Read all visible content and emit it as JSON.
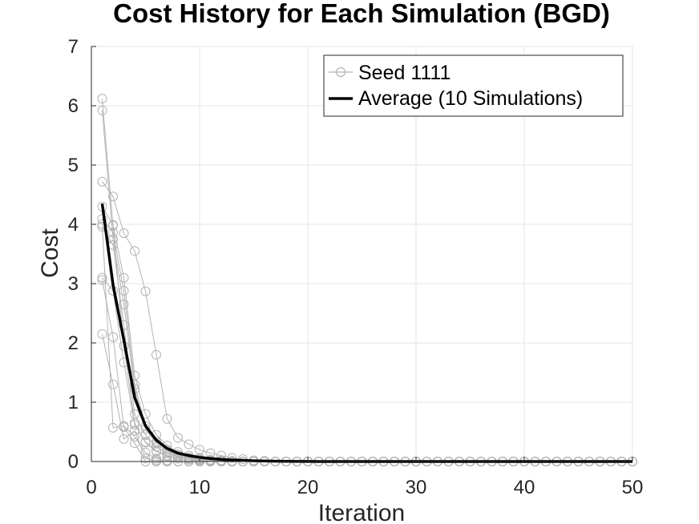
{
  "chart_data": {
    "type": "line",
    "title": "Cost History for Each Simulation (BGD)",
    "xlabel": "Iteration",
    "ylabel": "Cost",
    "xlim": [
      0,
      50
    ],
    "ylim": [
      0,
      7
    ],
    "xticks": [
      "0",
      "10",
      "20",
      "30",
      "40",
      "50"
    ],
    "yticks": [
      "0",
      "1",
      "2",
      "3",
      "4",
      "5",
      "6",
      "7"
    ],
    "grid": true,
    "legend_position": "top-right",
    "colors": {
      "simulations": "#b3b3b3",
      "average": "#000000",
      "grid": "#e6e6e6",
      "axes": "#262626"
    },
    "iterations_start": 1,
    "iterations_end": 50,
    "legend": {
      "seed": "Seed 1111",
      "average": "Average (10 Simulations)"
    },
    "series": [
      {
        "values": [
          6.12,
          3.98,
          1.95,
          0.65,
          0.32,
          0.17,
          0.09,
          0.05,
          0.03,
          0.02,
          0.01,
          0.0,
          0.0,
          0.0,
          0.0
        ]
      },
      {
        "values": [
          5.92,
          3.75,
          2.65,
          1.22,
          0.55,
          0.3,
          0.17,
          0.1,
          0.06,
          0.03,
          0.02,
          0.01,
          0.0,
          0.0,
          0.0
        ]
      },
      {
        "values": [
          4.72,
          4.47,
          3.85,
          3.55,
          2.87,
          1.8,
          0.72,
          0.4,
          0.29,
          0.2,
          0.14,
          0.1,
          0.06,
          0.04,
          0.02,
          0.01,
          0.0
        ]
      },
      {
        "values": [
          4.3,
          3.99,
          3.1,
          1.45,
          0.8,
          0.45,
          0.27,
          0.16,
          0.1,
          0.06,
          0.03,
          0.02,
          0.01,
          0.0,
          0.0
        ]
      },
      {
        "values": [
          4.09,
          3.86,
          2.88,
          1.3,
          0.6,
          0.33,
          0.2,
          0.12,
          0.07,
          0.04,
          0.02,
          0.01,
          0.0,
          0.0,
          0.0
        ]
      },
      {
        "values": [
          3.96,
          3.65,
          2.3,
          0.8,
          0.45,
          0.25,
          0.14,
          0.08,
          0.05,
          0.03,
          0.01,
          0.0,
          0.0,
          0.0,
          0.0
        ]
      },
      {
        "values": [
          3.1,
          2.88,
          1.67,
          0.62,
          0.33,
          0.18,
          0.1,
          0.05,
          0.03,
          0.02,
          0.01,
          0.0,
          0.0,
          0.0,
          0.0
        ]
      },
      {
        "values": [
          3.06,
          2.1,
          0.58,
          0.31,
          0.0,
          0.0,
          0.0,
          0.0,
          0.0,
          0.0,
          0.0,
          0.0,
          0.0,
          0.0,
          0.0
        ]
      },
      {
        "values": [
          2.15,
          1.3,
          0.38,
          0.52,
          0.05,
          0.02,
          0.0,
          0.0,
          0.0,
          0.0,
          0.0,
          0.0,
          0.0,
          0.0,
          0.0
        ]
      },
      {
        "values": [
          4.0,
          0.57,
          0.6,
          0.42,
          0.15,
          0.05,
          0.02,
          0.0,
          0.0,
          0.0,
          0.0,
          0.0,
          0.0,
          0.0,
          0.0
        ]
      }
    ],
    "average": {
      "values": [
        4.35,
        2.98,
        2.05,
        1.08,
        0.6,
        0.36,
        0.22,
        0.14,
        0.1,
        0.07,
        0.05,
        0.035,
        0.025,
        0.018,
        0.012,
        0.008,
        0.005,
        0.003,
        0.002,
        0.001,
        0.0
      ]
    }
  }
}
